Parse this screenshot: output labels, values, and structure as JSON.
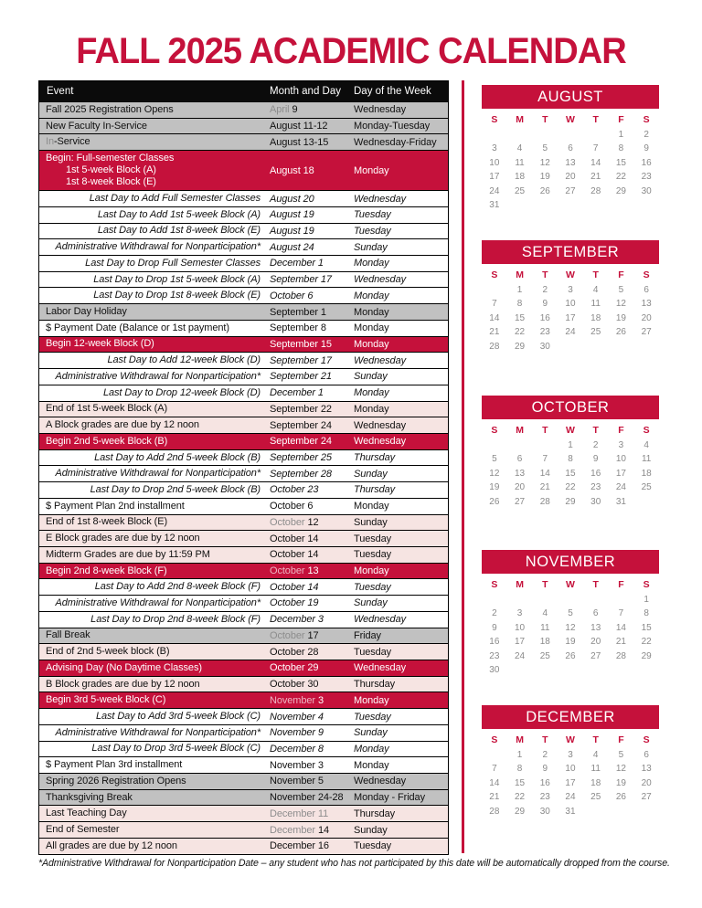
{
  "title": "FALL 2025 ACADEMIC CALENDAR",
  "table": {
    "headers": {
      "event": "Event",
      "month_day": "Month and Day",
      "day_of_week": "Day of the Week"
    },
    "rows": [
      {
        "style": "gray",
        "ev": "Fall 2025 Registration Opens",
        "md_dim": "April",
        "md": "9",
        "dow": "Wednesday"
      },
      {
        "style": "gray",
        "ev": "New Faculty In-Service",
        "md_dim": "",
        "md": "August 11-12",
        "dow": "Monday-Tuesday"
      },
      {
        "style": "gray",
        "ev_dim": "In",
        "ev": "-Service",
        "md_dim": "",
        "md": "August 13-15",
        "dow": "Wednesday-Friday"
      },
      {
        "style": "red",
        "event_lines": [
          "Begin: Full-semester Classes",
          "1st 5-week Block (A)",
          "1st 8-week Block (E)"
        ],
        "md_dim": "",
        "md": "August 18",
        "dow": "Monday"
      },
      {
        "style": "italic",
        "ev": "Last Day to Add Full Semester Classes",
        "md_dim": "",
        "md": "August 20",
        "dow": "Wednesday"
      },
      {
        "style": "italic",
        "ev": "Last Day to Add 1st 5-week Block (A)",
        "md_dim": "",
        "md": "August 19",
        "dow": "Tuesday"
      },
      {
        "style": "italic",
        "ev": "Last Day to Add 1st 8-week Block (E)",
        "md_dim": "",
        "md": "August 19",
        "dow": "Tuesday"
      },
      {
        "style": "italic",
        "ev": "Administrative Withdrawal for Nonparticipation*",
        "md_dim": "",
        "md": "August 24",
        "dow": "Sunday"
      },
      {
        "style": "italic",
        "ev": "Last Day to Drop Full Semester Classes",
        "md_dim": "",
        "md": "December 1",
        "dow": "Monday"
      },
      {
        "style": "italic",
        "ev": "Last Day to Drop 1st 5-week Block (A)",
        "md_dim": "",
        "md": "September 17",
        "dow": "Wednesday"
      },
      {
        "style": "italic",
        "ev": "Last Day to Drop 1st 8-week Block (E)",
        "md_dim": "",
        "md": "October 6",
        "dow": "Monday"
      },
      {
        "style": "gray",
        "ev": "Labor Day Holiday",
        "md_dim": "",
        "md": "September 1",
        "dow": "Monday"
      },
      {
        "style": "plain",
        "ev": "$ Payment Date (Balance or 1st payment)",
        "md_dim": "",
        "md": "September 8",
        "dow": "Monday"
      },
      {
        "style": "red",
        "ev": "Begin 12-week Block (D)",
        "md_dim": "",
        "md": "September 15",
        "dow": "Monday"
      },
      {
        "style": "italic",
        "ev": "Last Day to Add 12-week Block (D)",
        "md_dim": "",
        "md": "September 17",
        "dow": "Wednesday"
      },
      {
        "style": "italic",
        "ev": "Administrative Withdrawal for Nonparticipation*",
        "md_dim": "",
        "md": "September 21",
        "dow": "Sunday"
      },
      {
        "style": "italic",
        "ev": "Last Day to Drop 12-week Block (D)",
        "md_dim": "",
        "md": "December 1",
        "dow": "Monday"
      },
      {
        "style": "pink",
        "ev": "End of 1st 5-week Block (A)",
        "md_dim": "",
        "md": "September 22",
        "dow": "Monday"
      },
      {
        "style": "pink",
        "ev": "A Block grades are due by 12 noon",
        "md_dim": "",
        "md": "September 24",
        "dow": "Wednesday"
      },
      {
        "style": "red",
        "ev": "Begin 2nd 5-week Block (B)",
        "md_dim": "",
        "md": "September 24",
        "dow": "Wednesday"
      },
      {
        "style": "italic",
        "ev": "Last Day to Add 2nd 5-week Block (B)",
        "md_dim": "",
        "md": "September 25",
        "dow": "Thursday"
      },
      {
        "style": "italic",
        "ev": "Administrative Withdrawal for Nonparticipation*",
        "md_dim": "",
        "md": "September 28",
        "dow": "Sunday"
      },
      {
        "style": "italic",
        "ev": "Last Day to Drop 2nd 5-week Block (B)",
        "md_dim": "",
        "md": "October 23",
        "dow": "Thursday"
      },
      {
        "style": "plain",
        "ev": "$ Payment Plan 2nd installment",
        "md_dim": "",
        "md": "October 6",
        "dow": "Monday"
      },
      {
        "style": "pink",
        "ev": "End of 1st 8-week Block (E)",
        "md_dim": "October",
        "md": "12",
        "dow": "Sunday"
      },
      {
        "style": "pink",
        "ev": "E Block grades are due by 12 noon",
        "md_dim": "",
        "md": "October 14",
        "dow": "Tuesday"
      },
      {
        "style": "pink",
        "ev": "Midterm Grades are due by 11:59 PM",
        "md_dim": "",
        "md": "October 14",
        "dow": "Tuesday"
      },
      {
        "style": "red",
        "ev": "Begin 2nd 8-week Block (F)",
        "md_dim": "October",
        "md": "13",
        "dow": "Monday"
      },
      {
        "style": "italic",
        "ev": "Last Day to Add 2nd 8-week Block (F)",
        "md_dim": "",
        "md": "October 14",
        "dow": "Tuesday"
      },
      {
        "style": "italic",
        "ev": "Administrative Withdrawal for Nonparticipation*",
        "md_dim": "",
        "md": "October 19",
        "dow": "Sunday"
      },
      {
        "style": "italic",
        "ev": "Last Day to Drop 2nd 8-week Block (F)",
        "md_dim": "",
        "md": "December 3",
        "dow": "Wednesday"
      },
      {
        "style": "gray",
        "ev": "Fall Break",
        "md_dim": "October",
        "md": "17",
        "dow": "Friday"
      },
      {
        "style": "pink",
        "ev": "End of 2nd 5-week block (B)",
        "md_dim": "",
        "md": "October 28",
        "dow": "Tuesday"
      },
      {
        "style": "red",
        "ev": "Advising Day (No Daytime Classes)",
        "md_dim": "",
        "md": "October 29",
        "dow": "Wednesday"
      },
      {
        "style": "pink",
        "ev": "B Block grades are due by 12 noon",
        "md_dim": "",
        "md": "October 30",
        "dow": "Thursday"
      },
      {
        "style": "red",
        "ev": "Begin 3rd 5-week Block (C)",
        "md_dim": "November",
        "md": "3",
        "dow": "Monday"
      },
      {
        "style": "italic",
        "ev": "Last Day to Add 3rd 5-week Block (C)",
        "md_dim": "",
        "md": "November 4",
        "dow": "Tuesday"
      },
      {
        "style": "italic",
        "ev": "Administrative Withdrawal for Nonparticipation*",
        "md_dim": "",
        "md": "November 9",
        "dow": "Sunday"
      },
      {
        "style": "italic",
        "ev": "Last Day to Drop 3rd 5-week Block (C)",
        "md_dim": "",
        "md": "December 8",
        "dow": "Monday"
      },
      {
        "style": "plain",
        "ev": "$ Payment Plan 3rd installment",
        "md_dim": "",
        "md": "November 3",
        "dow": "Monday"
      },
      {
        "style": "gray",
        "ev": "Spring 2026 Registration Opens",
        "md_dim": "",
        "md": "November 5",
        "dow": "Wednesday"
      },
      {
        "style": "gray",
        "ev": "Thanksgiving Break",
        "md_dim": "",
        "md": "November 24-28",
        "dow": "Monday - Friday"
      },
      {
        "style": "pink",
        "ev": "Last Teaching Day",
        "md_dim": "December 11",
        "md": "",
        "dow": "Thursday"
      },
      {
        "style": "pink",
        "ev": "End of Semester",
        "md_dim": "December",
        "md": "14",
        "dow": "Sunday"
      },
      {
        "style": "pink",
        "ev": "All grades are due by 12 noon",
        "md_dim": "",
        "md": "December 16",
        "dow": "Tuesday"
      }
    ]
  },
  "calendars": [
    {
      "name": "AUGUST",
      "day_headers": [
        "S",
        "M",
        "T",
        "W",
        "T",
        "F",
        "S"
      ],
      "weeks": [
        [
          "",
          "",
          "",
          "",
          "",
          "1",
          "2"
        ],
        [
          "3",
          "4",
          "5",
          "6",
          "7",
          "8",
          "9"
        ],
        [
          "10",
          "11",
          "12",
          "13",
          "14",
          "15",
          "16"
        ],
        [
          "17",
          "18",
          "19",
          "20",
          "21",
          "22",
          "23"
        ],
        [
          "24",
          "25",
          "26",
          "27",
          "28",
          "29",
          "30"
        ],
        [
          "31",
          "",
          "",
          "",
          "",
          "",
          ""
        ]
      ]
    },
    {
      "name": "SEPTEMBER",
      "day_headers": [
        "S",
        "M",
        "T",
        "W",
        "T",
        "F",
        "S"
      ],
      "weeks": [
        [
          "",
          "1",
          "2",
          "3",
          "4",
          "5",
          "6"
        ],
        [
          "7",
          "8",
          "9",
          "10",
          "11",
          "12",
          "13"
        ],
        [
          "14",
          "15",
          "16",
          "17",
          "18",
          "19",
          "20"
        ],
        [
          "21",
          "22",
          "23",
          "24",
          "25",
          "26",
          "27"
        ],
        [
          "28",
          "29",
          "30",
          "",
          "",
          "",
          ""
        ]
      ]
    },
    {
      "name": "OCTOBER",
      "day_headers": [
        "S",
        "M",
        "T",
        "W",
        "T",
        "F",
        "S"
      ],
      "weeks": [
        [
          "",
          "",
          "",
          "1",
          "2",
          "3",
          "4"
        ],
        [
          "5",
          "6",
          "7",
          "8",
          "9",
          "10",
          "11"
        ],
        [
          "12",
          "13",
          "14",
          "15",
          "16",
          "17",
          "18"
        ],
        [
          "19",
          "20",
          "21",
          "22",
          "23",
          "24",
          "25"
        ],
        [
          "26",
          "27",
          "28",
          "29",
          "30",
          "31",
          ""
        ]
      ]
    },
    {
      "name": "NOVEMBER",
      "day_headers": [
        "S",
        "M",
        "T",
        "W",
        "T",
        "F",
        "S"
      ],
      "weeks": [
        [
          "",
          "",
          "",
          "",
          "",
          "",
          "1"
        ],
        [
          "2",
          "3",
          "4",
          "5",
          "6",
          "7",
          "8"
        ],
        [
          "9",
          "10",
          "11",
          "12",
          "13",
          "14",
          "15"
        ],
        [
          "16",
          "17",
          "18",
          "19",
          "20",
          "21",
          "22"
        ],
        [
          "23",
          "24",
          "25",
          "26",
          "27",
          "28",
          "29"
        ],
        [
          "30",
          "",
          "",
          "",
          "",
          "",
          ""
        ]
      ]
    },
    {
      "name": "DECEMBER",
      "day_headers": [
        "S",
        "M",
        "T",
        "W",
        "T",
        "F",
        "S"
      ],
      "weeks": [
        [
          "",
          "1",
          "2",
          "3",
          "4",
          "5",
          "6"
        ],
        [
          "7",
          "8",
          "9",
          "10",
          "11",
          "12",
          "13"
        ],
        [
          "14",
          "15",
          "16",
          "17",
          "18",
          "19",
          "20"
        ],
        [
          "21",
          "22",
          "23",
          "24",
          "25",
          "26",
          "27"
        ],
        [
          "28",
          "29",
          "30",
          "31",
          "",
          "",
          ""
        ]
      ]
    }
  ],
  "footnote": "*Administrative Withdrawal for Nonparticipation Date – any student who has not participated by this date will be automatically dropped from the course.",
  "colors": {
    "accent_red": "#C5113B",
    "gray_row": "#C1C1C1",
    "pink_row": "#F6E4E2",
    "calendar_number": "#8A8A8A"
  }
}
